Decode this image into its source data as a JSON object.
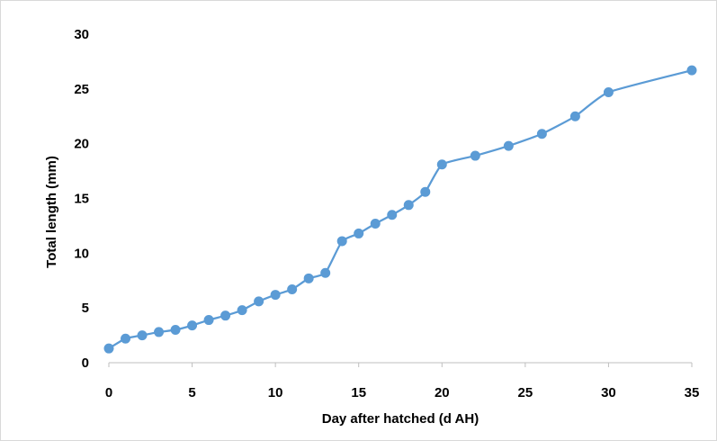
{
  "chart_data": {
    "type": "line",
    "title": "",
    "xlabel": "Day after hatched (d AH)",
    "ylabel": "Total length (mm)",
    "xlim": [
      0,
      35
    ],
    "ylim": [
      0,
      30
    ],
    "x_ticks": [
      0,
      5,
      10,
      15,
      20,
      25,
      30,
      35
    ],
    "y_ticks": [
      0,
      5,
      10,
      15,
      20,
      25,
      30
    ],
    "grid": false,
    "legend": "none",
    "series": [
      {
        "color": "#5b9bd5",
        "marker": "circle",
        "x": [
          0,
          1,
          2,
          3,
          4,
          5,
          6,
          7,
          8,
          9,
          10,
          11,
          12,
          13,
          14,
          15,
          16,
          17,
          18,
          19,
          20,
          22,
          24,
          26,
          28,
          30,
          35
        ],
        "y": [
          1.3,
          2.2,
          2.5,
          2.8,
          3.0,
          3.4,
          3.9,
          4.3,
          4.8,
          5.6,
          6.2,
          6.7,
          7.7,
          8.2,
          11.1,
          11.8,
          12.7,
          13.5,
          14.4,
          15.6,
          18.1,
          18.9,
          19.8,
          20.9,
          22.5,
          24.7,
          26.7
        ]
      }
    ]
  }
}
